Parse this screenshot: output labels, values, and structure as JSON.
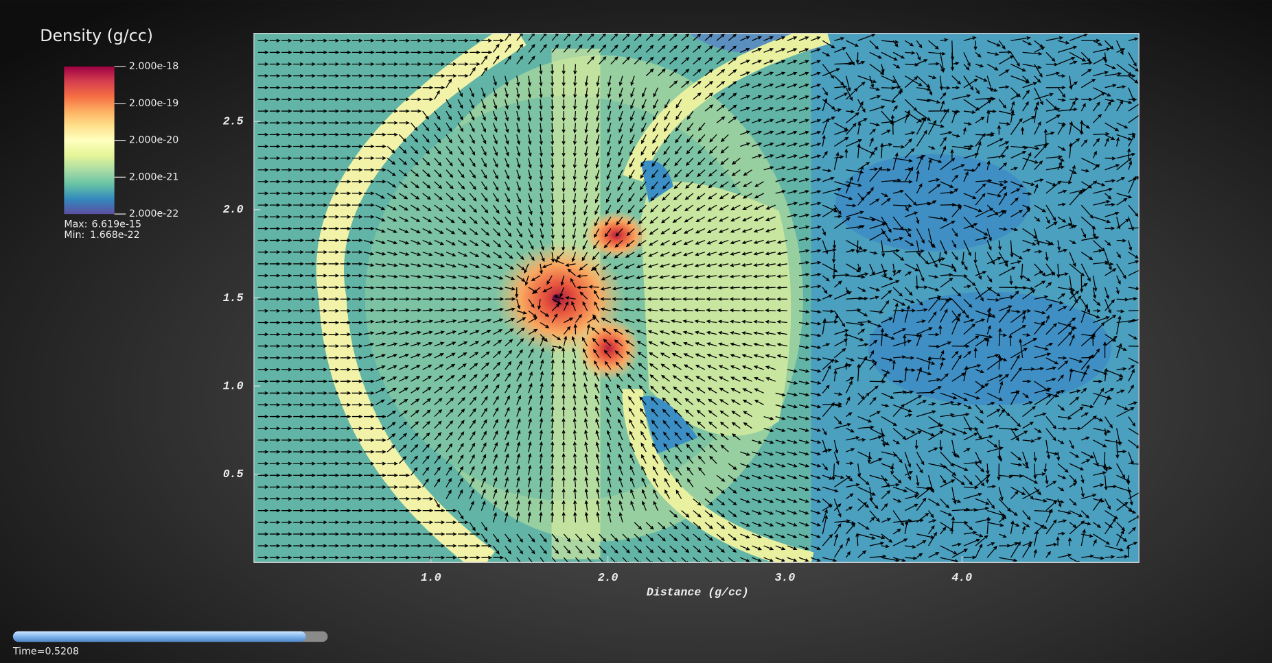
{
  "chart_data": {
    "type": "pseudocolor",
    "title": "Density (g/cc)",
    "xlabel": "Distance (g/cc)",
    "xlim": [
      0,
      5
    ],
    "ylim": [
      0,
      3
    ],
    "xticks": [
      {
        "value": 1,
        "label": "1.0"
      },
      {
        "value": 2,
        "label": "2.0"
      },
      {
        "value": 3,
        "label": "3.0"
      },
      {
        "value": 4,
        "label": "4.0"
      }
    ],
    "yticks": [
      {
        "value": 0.5,
        "label": "0.5"
      },
      {
        "value": 1,
        "label": "1.0"
      },
      {
        "value": 1.5,
        "label": "1.5"
      },
      {
        "value": 2,
        "label": "2.0"
      },
      {
        "value": 2.5,
        "label": "2.5"
      }
    ],
    "colorbar": {
      "log_scale": true,
      "clim": [
        2e-22,
        2e-18
      ],
      "ticks": [
        {
          "value": 2e-18,
          "label": "2.000e-18"
        },
        {
          "value": 2e-19,
          "label": "2.000e-19"
        },
        {
          "value": 2e-20,
          "label": "2.000e-20"
        },
        {
          "value": 2e-21,
          "label": "2.000e-21"
        },
        {
          "value": 2e-22,
          "label": "2.000e-22"
        }
      ],
      "colors": [
        "#9e0142",
        "#d53e4f",
        "#f46d43",
        "#fdae61",
        "#fee08b",
        "#ffffbf",
        "#e6f598",
        "#abdda4",
        "#66c2a5",
        "#3288bd",
        "#5e4fa2"
      ],
      "max_label": "Max:",
      "max_value": "6.619e-15",
      "min_label": "Min:",
      "min_value": "1.668e-22"
    },
    "time_label": "Time=0.5208"
  }
}
